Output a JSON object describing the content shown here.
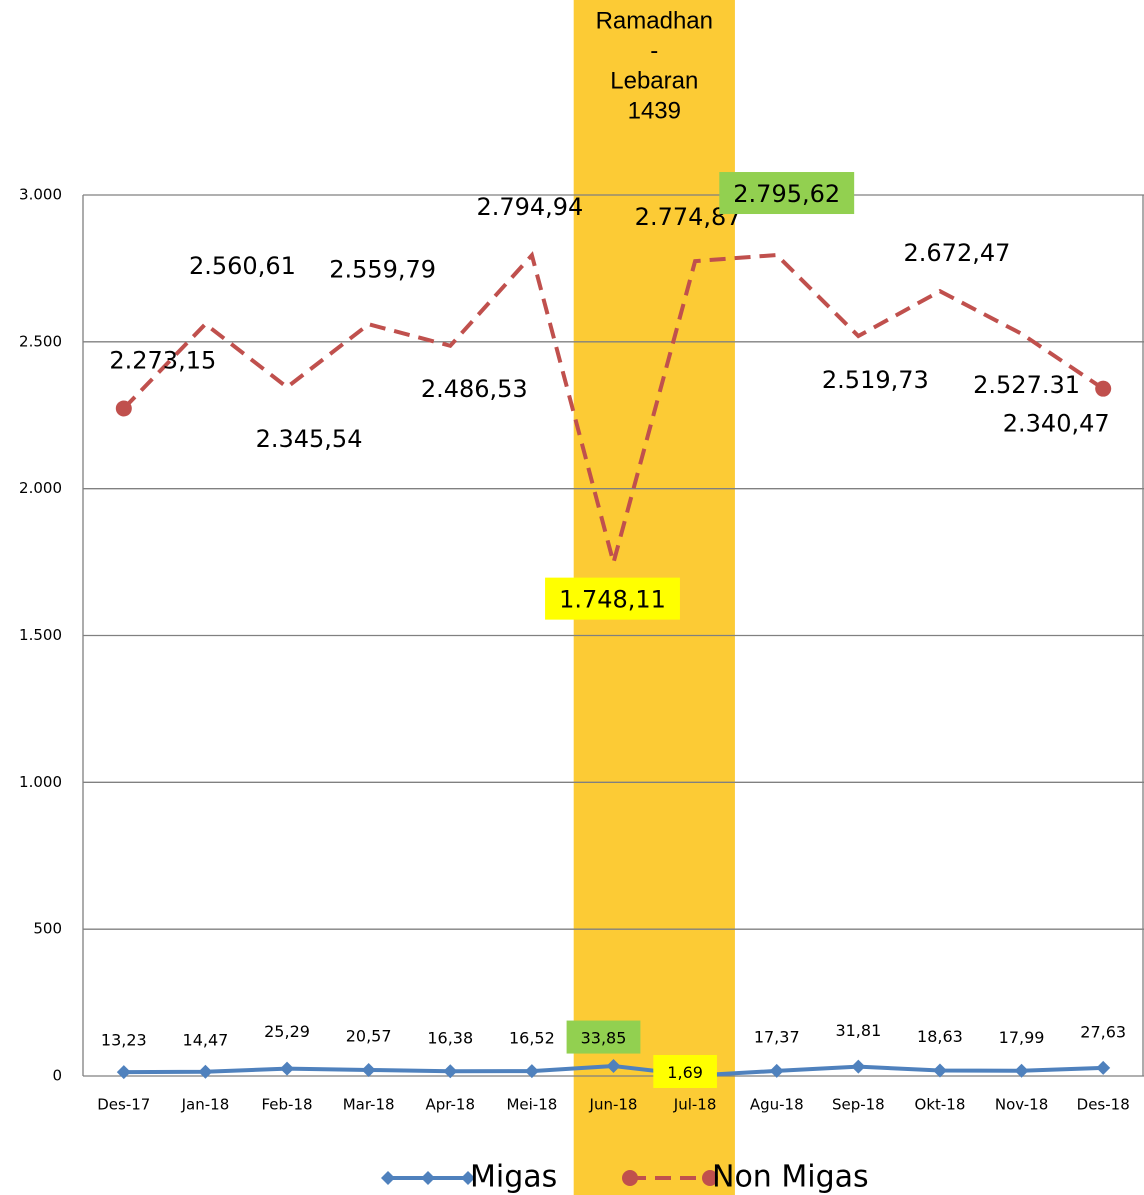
{
  "chart_data": {
    "type": "line",
    "annotation": [
      "Ramadhan",
      "-",
      "Lebaran",
      "1439"
    ],
    "highlight_color": "#fccb35",
    "categories": [
      "Des-17",
      "Jan-18",
      "Feb-18",
      "Mar-18",
      "Apr-18",
      "Mei-18",
      "Jun-18",
      "Jul-18",
      "Agu-18",
      "Sep-18",
      "Okt-18",
      "Nov-18",
      "Des-18"
    ],
    "series": [
      {
        "name": "Migas",
        "color": "#4f81bd",
        "dashed": false,
        "values": [
          13.23,
          14.47,
          25.29,
          20.57,
          16.38,
          16.52,
          33.85,
          1.69,
          17.37,
          31.81,
          18.63,
          17.99,
          27.63
        ],
        "value_labels": [
          "13,23",
          "14,47",
          "25,29",
          "20,57",
          "16,38",
          "16,52",
          "33,85",
          "1,69",
          "17,37",
          "31,81",
          "18,63",
          "17,99",
          "27,63"
        ],
        "label_fills": [
          null,
          null,
          null,
          null,
          null,
          null,
          "#92d050",
          "#ffff00",
          null,
          null,
          null,
          null,
          null
        ]
      },
      {
        "name": "Non Migas",
        "color": "#c0504d",
        "dashed": true,
        "values": [
          2273.15,
          2560.61,
          2345.54,
          2559.79,
          2486.53,
          2794.94,
          1748.11,
          2774.87,
          2795.62,
          2519.73,
          2672.47,
          2527.31,
          2340.47
        ],
        "value_labels": [
          "2.273,15",
          "2.560,61",
          "2.345,54",
          "2.559,79",
          "2.486,53",
          "2.794,94",
          "1.748,11",
          "2.774,87",
          "2.795,62",
          "2.519,73",
          "2.672,47",
          "2.527.31",
          "2.340,47"
        ],
        "label_fills": [
          null,
          null,
          null,
          null,
          null,
          null,
          "#ffff00",
          null,
          "#92d050",
          null,
          null,
          null,
          null
        ]
      }
    ],
    "ylim": [
      0,
      3000
    ],
    "yticks": [
      0,
      500,
      {
        "value": 1000,
        "label": "1.000"
      },
      {
        "value": 1500,
        "label": "1.500"
      },
      {
        "value": 2000,
        "label": "2.000"
      },
      {
        "value": 2500,
        "label": "2.500"
      },
      {
        "value": 3000,
        "label": "3.000"
      }
    ],
    "grid": true
  }
}
